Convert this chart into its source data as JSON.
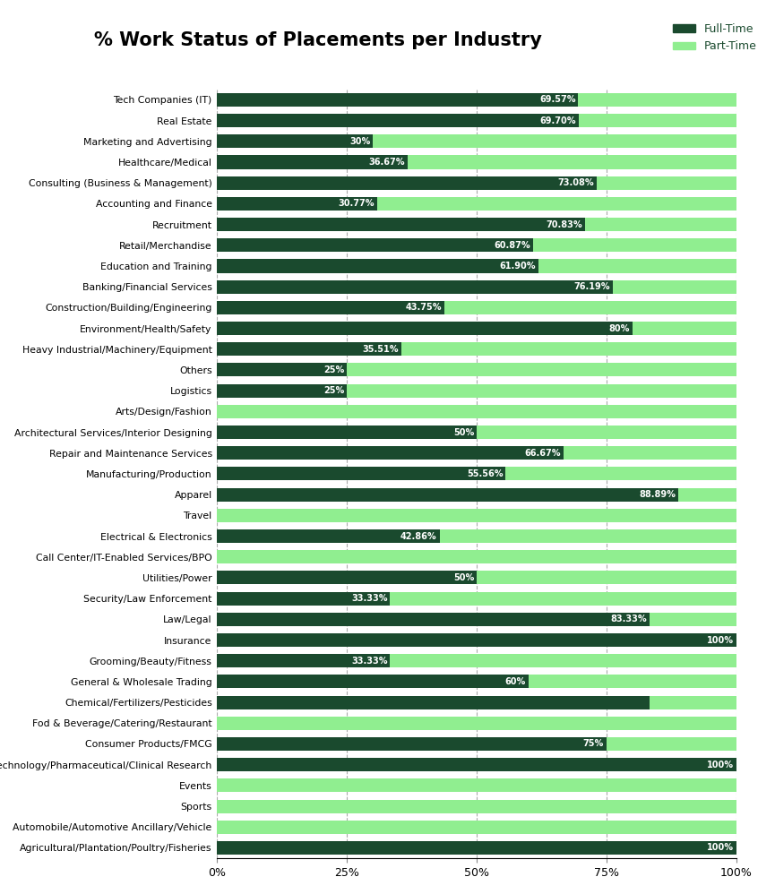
{
  "title": "% Work Status of Placements per Industry",
  "full_time_color": "#1a4a2e",
  "part_time_color": "#90ee90",
  "title_bg": "#00ff00",
  "title_border_color": "#00aa00",
  "categories": [
    "Tech Companies (IT)",
    "Real Estate",
    "Marketing and Advertising",
    "Healthcare/Medical",
    "Consulting (Business & Management)",
    "Accounting and Finance",
    "Recruitment",
    "Retail/Merchandise",
    "Education and Training",
    "Banking/Financial Services",
    "Construction/Building/Engineering",
    "Environment/Health/Safety",
    "Heavy Industrial/Machinery/Equipment",
    "Others",
    "Logistics",
    "Arts/Design/Fashion",
    "Architectural Services/Interior Designing",
    "Repair and Maintenance Services",
    "Manufacturing/Production",
    "Apparel",
    "Travel",
    "Electrical & Electronics",
    "Call Center/IT-Enabled Services/BPO",
    "Utilities/Power",
    "Security/Law Enforcement",
    "Law/Legal",
    "Insurance",
    "Grooming/Beauty/Fitness",
    "General & Wholesale Trading",
    "Chemical/Fertilizers/Pesticides",
    "Fod & Beverage/Catering/Restaurant",
    "Consumer Products/FMCG",
    "BioTechnology/Pharmaceutical/Clinical Research",
    "Events",
    "Sports",
    "Automobile/Automotive Ancillary/Vehicle",
    "Agricultural/Plantation/Poultry/Fisheries"
  ],
  "full_time_pct": [
    69.57,
    69.7,
    30.0,
    36.67,
    73.08,
    30.77,
    70.83,
    60.87,
    61.9,
    76.19,
    43.75,
    80.0,
    35.51,
    25.0,
    25.0,
    0.0,
    50.0,
    66.67,
    55.56,
    88.89,
    0.0,
    42.86,
    0.0,
    50.0,
    33.33,
    83.33,
    100.0,
    33.33,
    60.0,
    83.33,
    0.0,
    75.0,
    100.0,
    0.0,
    0.0,
    0.0,
    100.0
  ],
  "full_time_labels": [
    "69.57%",
    "69.70%",
    "30%",
    "36.67%",
    "73.08%",
    "30.77%",
    "70.83%",
    "60.87%",
    "61.90%",
    "76.19%",
    "43.75%",
    "80%",
    "35.51%",
    "25%",
    "25%",
    "",
    "50%",
    "66.67%",
    "55.56%",
    "88.89%",
    "",
    "42.86%",
    "",
    "50%",
    "33.33%",
    "83.33%",
    "100%",
    "33.33%",
    "60%",
    "",
    "",
    "75%",
    "100%",
    "",
    "",
    "",
    "100%"
  ],
  "legend_full": "Full-Time",
  "legend_part": "Part-Time",
  "background_color": "#ffffff",
  "bar_height": 0.65,
  "figsize": [
    8.65,
    9.98
  ],
  "dpi": 100
}
